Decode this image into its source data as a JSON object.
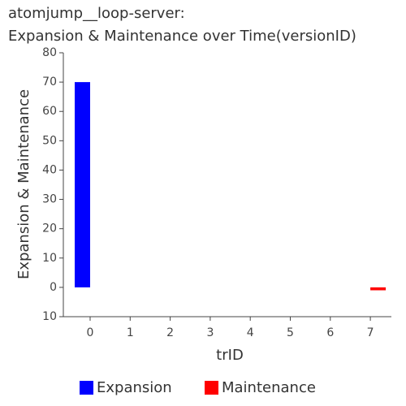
{
  "chart_data": {
    "type": "bar",
    "title": [
      "atomjump__loop-server:",
      "Expansion & Maintenance over Time(versionID)"
    ],
    "xlabel": "trID",
    "ylabel": "Expansion & Maintenance",
    "categories": [
      "0",
      "1",
      "2",
      "3",
      "4",
      "5",
      "6",
      "7"
    ],
    "series": [
      {
        "name": "Expansion",
        "color": "#0000ff",
        "values": [
          70,
          0,
          0,
          0,
          0,
          0,
          0,
          0
        ]
      },
      {
        "name": "Maintenance",
        "color": "#ff0000",
        "values": [
          0,
          0,
          0,
          0,
          0,
          0,
          0,
          -1
        ]
      }
    ],
    "ylim": [
      -10,
      80
    ],
    "yticks": [
      {
        "value": -10,
        "label": "10"
      },
      0,
      10,
      20,
      30,
      40,
      50,
      60,
      70,
      80
    ]
  }
}
